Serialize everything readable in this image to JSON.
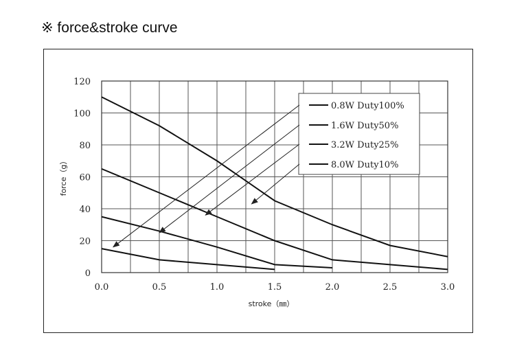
{
  "heading": "※ force&stroke curve",
  "chart_data": {
    "type": "line",
    "title": "",
    "xlabel": "stroke（㎜）",
    "ylabel": "force（g）",
    "xlim": [
      0,
      3.0
    ],
    "ylim": [
      0,
      120
    ],
    "x_step": 0.25,
    "y_step": 20,
    "x_ticks": [
      "0.0",
      "0.5",
      "1.0",
      "1.5",
      "2.0",
      "2.5",
      "3.0"
    ],
    "y_ticks": [
      "0",
      "20",
      "40",
      "60",
      "80",
      "100",
      "120"
    ],
    "grid": true,
    "legend_position": "top-right",
    "series": [
      {
        "name": "0.8W Duty100%",
        "x": [
          0.0,
          0.5,
          1.5
        ],
        "y": [
          15,
          8,
          2
        ]
      },
      {
        "name": "1.6W Duty50%",
        "x": [
          0.0,
          0.5,
          1.0,
          1.5,
          2.0
        ],
        "y": [
          35,
          26,
          16,
          5,
          3
        ]
      },
      {
        "name": "3.2W Duty25%",
        "x": [
          0.0,
          0.5,
          1.0,
          1.5,
          2.0,
          2.5,
          3.0
        ],
        "y": [
          65,
          50,
          35,
          20,
          8,
          5,
          2
        ]
      },
      {
        "name": "8.0W Duty10%",
        "x": [
          0.0,
          0.5,
          1.0,
          1.5,
          2.0,
          2.5,
          3.0
        ],
        "y": [
          110,
          92,
          70,
          45,
          30,
          17,
          10
        ]
      }
    ],
    "arrows": [
      {
        "series": "0.8W Duty100%",
        "to": [
          0.1,
          16
        ]
      },
      {
        "series": "1.6W Duty50%",
        "to": [
          0.5,
          25
        ]
      },
      {
        "series": "3.2W Duty25%",
        "to": [
          0.9,
          36
        ]
      },
      {
        "series": "8.0W Duty10%",
        "to": [
          1.3,
          43
        ]
      }
    ]
  }
}
